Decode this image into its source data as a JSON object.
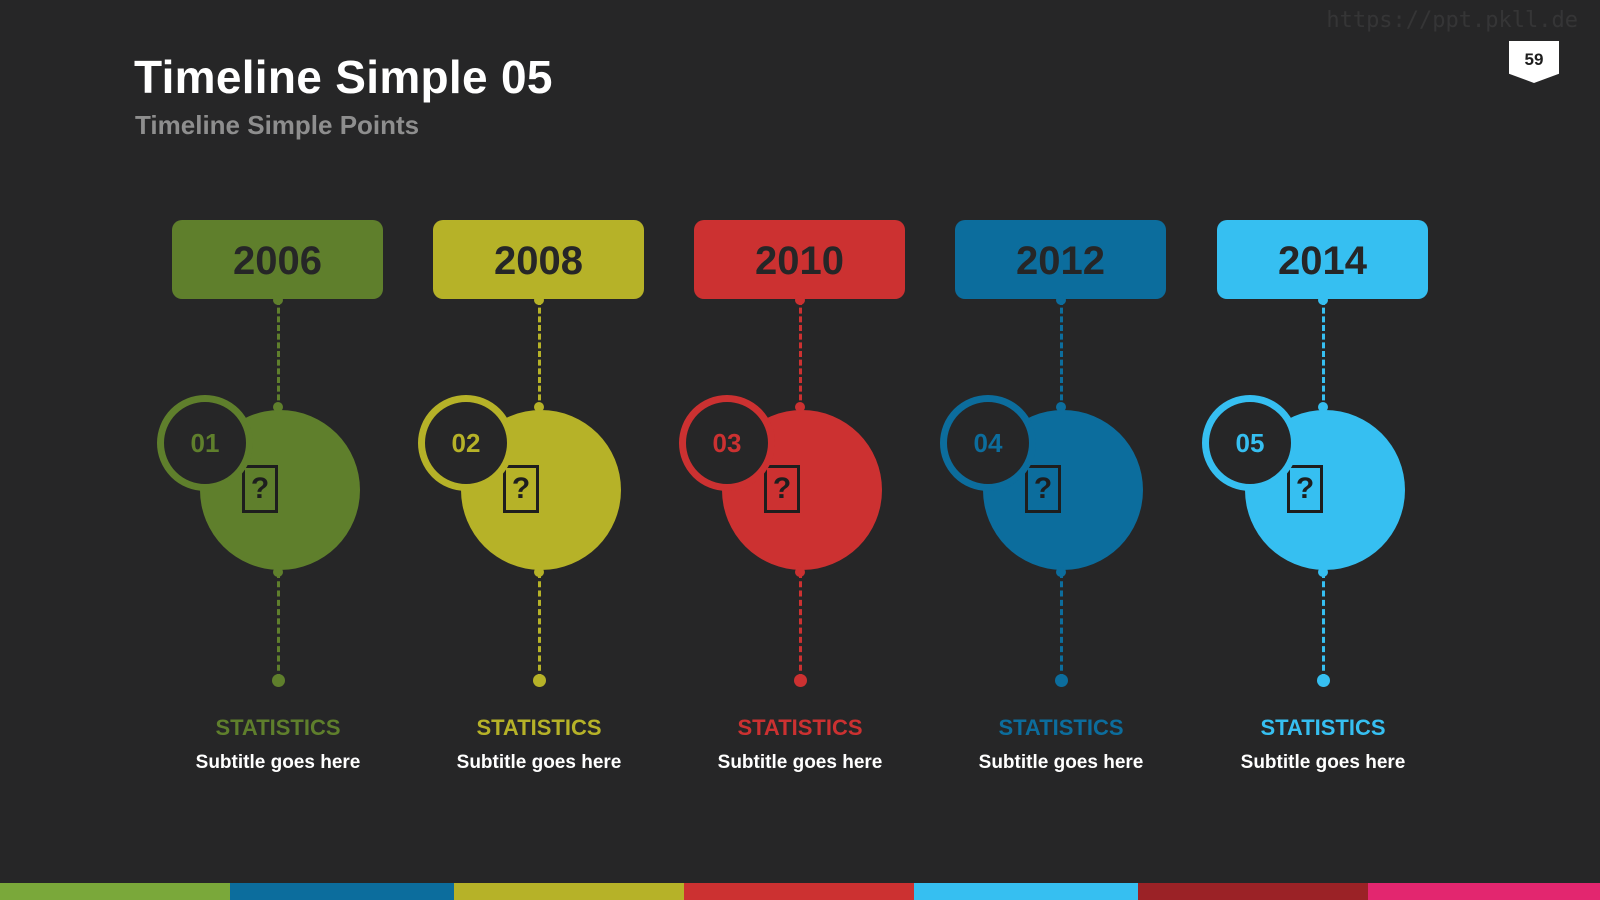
{
  "watermark": "https://ppt.pkll.de",
  "title": "Timeline Simple 05",
  "subtitle": "Timeline Simple Points",
  "page_number": "59",
  "items": [
    {
      "year": "2006",
      "number": "01",
      "label": "STATISTICS",
      "subtitle": "Subtitle goes here",
      "color": "#5f7f2c",
      "icon": "question-mark-icon"
    },
    {
      "year": "2008",
      "number": "02",
      "label": "STATISTICS",
      "subtitle": "Subtitle goes here",
      "color": "#b6b228",
      "icon": "question-mark-icon"
    },
    {
      "year": "2010",
      "number": "03",
      "label": "STATISTICS",
      "subtitle": "Subtitle goes here",
      "color": "#cc3131",
      "icon": "question-mark-icon"
    },
    {
      "year": "2012",
      "number": "04",
      "label": "STATISTICS",
      "subtitle": "Subtitle goes here",
      "color": "#0c6d9d",
      "icon": "question-mark-icon"
    },
    {
      "year": "2014",
      "number": "05",
      "label": "STATISTICS",
      "subtitle": "Subtitle goes here",
      "color": "#36bff1",
      "icon": "question-mark-icon"
    }
  ],
  "bottom_bar_colors": [
    "#7aa83a",
    "#0c6d9d",
    "#b6b228",
    "#cc3131",
    "#36bff1",
    "#9b2226",
    "#e3266f"
  ],
  "icon_glyph": "?"
}
